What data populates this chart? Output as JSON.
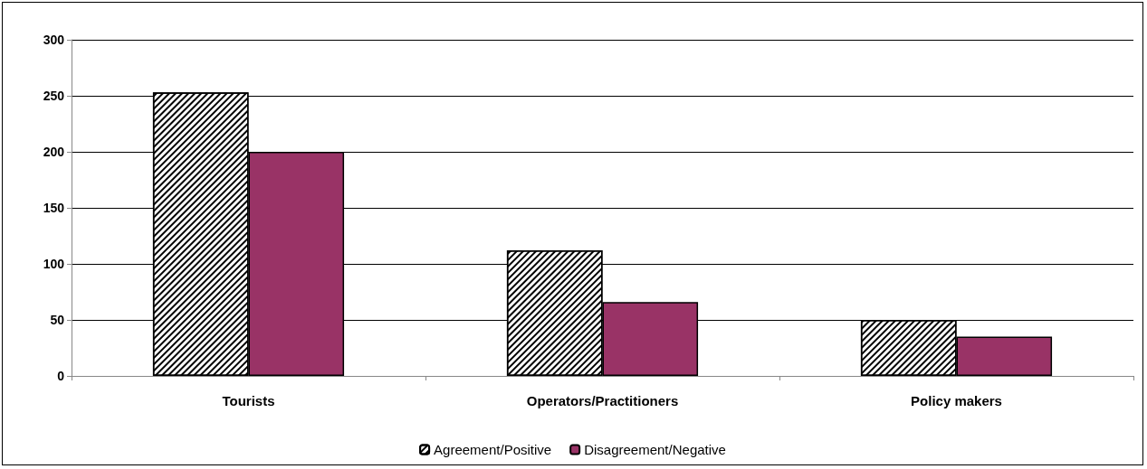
{
  "chart_data": {
    "type": "bar",
    "categories": [
      "Tourists",
      "Operators/Practitioners",
      "Policy makers"
    ],
    "series": [
      {
        "name": "Agreement/Positive",
        "color": "#ffffff",
        "values": [
          253,
          112,
          50
        ]
      },
      {
        "name": "Disagreement/Negative",
        "color": "#993366",
        "values": [
          200,
          66,
          35
        ]
      }
    ],
    "ylim": [
      0,
      300
    ],
    "yticks": [
      0,
      50,
      100,
      150,
      200,
      250,
      300
    ],
    "grid": "y",
    "legend": "bottom"
  }
}
